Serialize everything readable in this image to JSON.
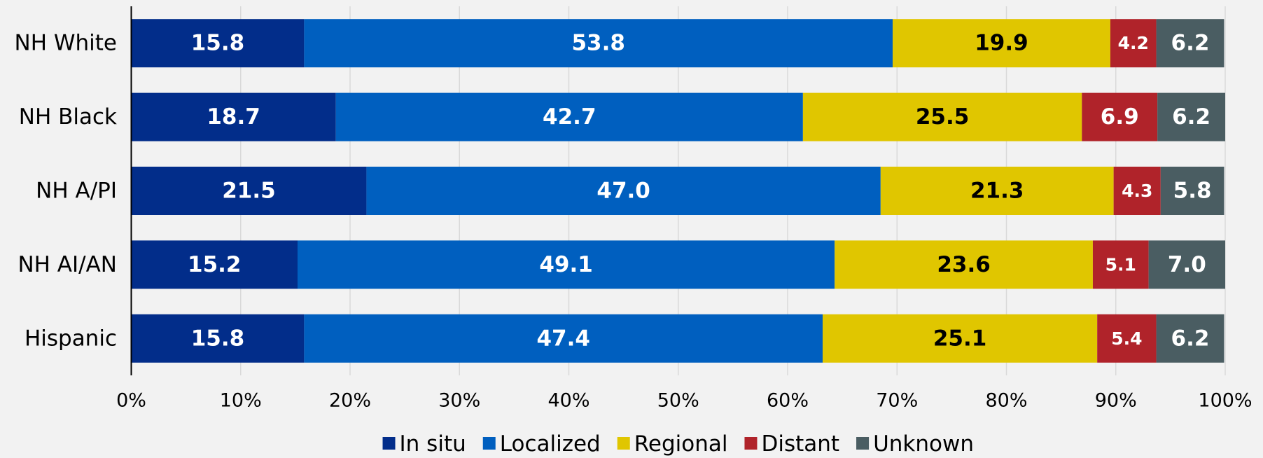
{
  "chart_data": {
    "type": "stacked-bar-horizontal",
    "categories": [
      "NH White",
      "NH Black",
      "NH A/PI",
      "NH AI/AN",
      "Hispanic"
    ],
    "series": [
      {
        "name": "In situ",
        "color": "#022d8a",
        "label_color": "#ffffff",
        "values": [
          15.8,
          18.7,
          21.5,
          15.2,
          15.8
        ],
        "value_labels": [
          "15.8",
          "18.7",
          "21.5",
          "15.2",
          "15.8"
        ]
      },
      {
        "name": "Localized",
        "color": "#005fbf",
        "label_color": "#ffffff",
        "values": [
          53.8,
          42.7,
          47.0,
          49.1,
          47.4
        ],
        "value_labels": [
          "53.8",
          "42.7",
          "47.0",
          "49.1",
          "47.4"
        ]
      },
      {
        "name": "Regional",
        "color": "#e0c600",
        "label_color": "#000000",
        "values": [
          19.9,
          25.5,
          21.3,
          23.6,
          25.1
        ],
        "value_labels": [
          "19.9",
          "25.5",
          "21.3",
          "23.6",
          "25.1"
        ]
      },
      {
        "name": "Distant",
        "color": "#b0232a",
        "label_color": "#ffffff",
        "values": [
          4.2,
          6.9,
          4.3,
          5.1,
          5.4
        ],
        "value_labels": [
          "4.2",
          "6.9",
          "4.3",
          "5.1",
          "5.4"
        ]
      },
      {
        "name": "Unknown",
        "color": "#4a5d62",
        "label_color": "#ffffff",
        "values": [
          6.2,
          6.2,
          5.8,
          7.0,
          6.2
        ],
        "value_labels": [
          "6.2",
          "6.2",
          "5.8",
          "7.0",
          "6.2"
        ]
      }
    ],
    "xlim": [
      0,
      100
    ],
    "xticks": [
      {
        "value": 0,
        "label": "0%"
      },
      {
        "value": 10,
        "label": "10%"
      },
      {
        "value": 20,
        "label": "20%"
      },
      {
        "value": 30,
        "label": "30%"
      },
      {
        "value": 40,
        "label": "40%"
      },
      {
        "value": 50,
        "label": "50%"
      },
      {
        "value": 60,
        "label": "60%"
      },
      {
        "value": 70,
        "label": "70%"
      },
      {
        "value": 80,
        "label": "80%"
      },
      {
        "value": 90,
        "label": "90%"
      },
      {
        "value": 100,
        "label": "100%"
      }
    ],
    "grid": true,
    "legend": "bottom"
  }
}
